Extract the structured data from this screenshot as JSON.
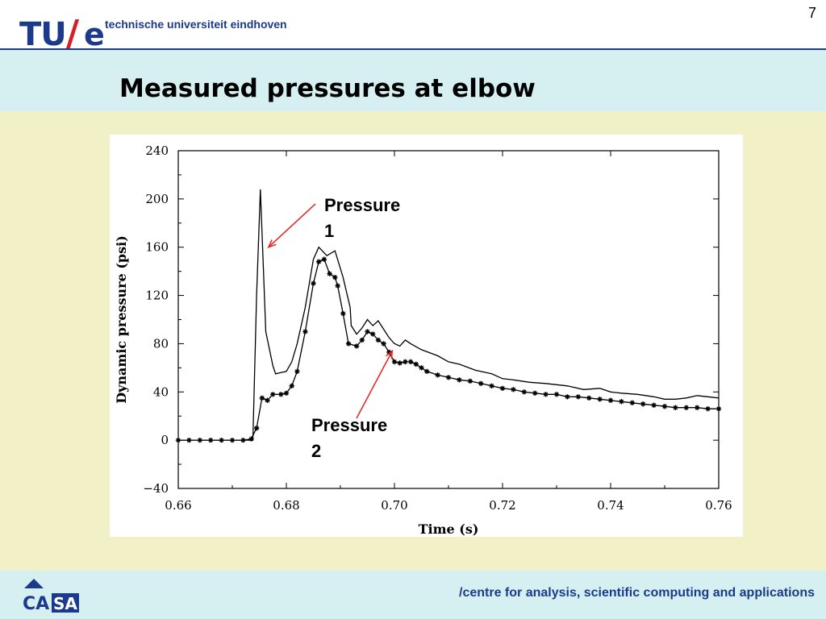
{
  "header": {
    "logo_text": "TU/e",
    "university": "technische universiteit eindhoven",
    "page_number": "7"
  },
  "slide": {
    "title": "Measured pressures at elbow"
  },
  "footer": {
    "logo_text": "CASA",
    "text": "/centre for analysis, scientific computing and applications"
  },
  "chart_data": {
    "type": "line",
    "xlabel": "Time (s)",
    "ylabel": "Dynamic pressure (psi)",
    "xlim": [
      0.66,
      0.76
    ],
    "ylim": [
      -40,
      240
    ],
    "x_ticks": [
      "0.66",
      "0.68",
      "0.70",
      "0.72",
      "0.74",
      "0.76"
    ],
    "y_ticks": [
      "−40",
      "0",
      "40",
      "80",
      "120",
      "160",
      "200",
      "240"
    ],
    "grid": false,
    "series": [
      {
        "name": "Pressure 1",
        "marker": "none",
        "points": [
          [
            0.66,
            0
          ],
          [
            0.673,
            0
          ],
          [
            0.6738,
            0
          ],
          [
            0.6745,
            120
          ],
          [
            0.6752,
            208
          ],
          [
            0.6762,
            90
          ],
          [
            0.6775,
            62
          ],
          [
            0.678,
            55
          ],
          [
            0.679,
            56
          ],
          [
            0.68,
            57
          ],
          [
            0.681,
            65
          ],
          [
            0.682,
            80
          ],
          [
            0.6835,
            110
          ],
          [
            0.685,
            150
          ],
          [
            0.686,
            160
          ],
          [
            0.6875,
            153
          ],
          [
            0.689,
            157
          ],
          [
            0.6905,
            135
          ],
          [
            0.6918,
            110
          ],
          [
            0.692,
            95
          ],
          [
            0.693,
            88
          ],
          [
            0.694,
            93
          ],
          [
            0.695,
            100
          ],
          [
            0.696,
            95
          ],
          [
            0.697,
            99
          ],
          [
            0.698,
            92
          ],
          [
            0.699,
            85
          ],
          [
            0.7,
            80
          ],
          [
            0.701,
            78
          ],
          [
            0.702,
            83
          ],
          [
            0.703,
            80
          ],
          [
            0.705,
            75
          ],
          [
            0.708,
            70
          ],
          [
            0.71,
            65
          ],
          [
            0.712,
            63
          ],
          [
            0.715,
            58
          ],
          [
            0.718,
            55
          ],
          [
            0.72,
            51
          ],
          [
            0.722,
            50
          ],
          [
            0.725,
            48
          ],
          [
            0.728,
            47
          ],
          [
            0.73,
            46
          ],
          [
            0.732,
            45
          ],
          [
            0.735,
            42
          ],
          [
            0.738,
            43
          ],
          [
            0.74,
            40
          ],
          [
            0.742,
            39
          ],
          [
            0.745,
            38
          ],
          [
            0.748,
            36
          ],
          [
            0.75,
            34
          ],
          [
            0.752,
            34
          ],
          [
            0.754,
            35
          ],
          [
            0.756,
            37
          ],
          [
            0.758,
            36
          ],
          [
            0.76,
            35
          ]
        ]
      },
      {
        "name": "Pressure 2",
        "marker": "star",
        "points": [
          [
            0.66,
            0
          ],
          [
            0.662,
            0
          ],
          [
            0.664,
            0
          ],
          [
            0.666,
            0
          ],
          [
            0.668,
            0
          ],
          [
            0.67,
            0
          ],
          [
            0.672,
            0
          ],
          [
            0.6735,
            1
          ],
          [
            0.6745,
            10
          ],
          [
            0.6755,
            35
          ],
          [
            0.6765,
            33
          ],
          [
            0.6775,
            38
          ],
          [
            0.679,
            38
          ],
          [
            0.68,
            39
          ],
          [
            0.681,
            45
          ],
          [
            0.682,
            57
          ],
          [
            0.6835,
            90
          ],
          [
            0.685,
            130
          ],
          [
            0.686,
            148
          ],
          [
            0.687,
            150
          ],
          [
            0.688,
            138
          ],
          [
            0.689,
            135
          ],
          [
            0.6895,
            128
          ],
          [
            0.6905,
            105
          ],
          [
            0.6915,
            80
          ],
          [
            0.693,
            78
          ],
          [
            0.694,
            83
          ],
          [
            0.695,
            90
          ],
          [
            0.696,
            88
          ],
          [
            0.697,
            83
          ],
          [
            0.698,
            80
          ],
          [
            0.699,
            73
          ],
          [
            0.7,
            65
          ],
          [
            0.701,
            64
          ],
          [
            0.702,
            65
          ],
          [
            0.703,
            65
          ],
          [
            0.704,
            63
          ],
          [
            0.705,
            60
          ],
          [
            0.706,
            57
          ],
          [
            0.708,
            54
          ],
          [
            0.71,
            52
          ],
          [
            0.712,
            50
          ],
          [
            0.714,
            49
          ],
          [
            0.716,
            47
          ],
          [
            0.718,
            45
          ],
          [
            0.72,
            43
          ],
          [
            0.722,
            42
          ],
          [
            0.724,
            40
          ],
          [
            0.726,
            39
          ],
          [
            0.728,
            38
          ],
          [
            0.73,
            38
          ],
          [
            0.732,
            36
          ],
          [
            0.734,
            36
          ],
          [
            0.736,
            35
          ],
          [
            0.738,
            34
          ],
          [
            0.74,
            33
          ],
          [
            0.742,
            32
          ],
          [
            0.744,
            31
          ],
          [
            0.746,
            30
          ],
          [
            0.748,
            29
          ],
          [
            0.75,
            28
          ],
          [
            0.752,
            27
          ],
          [
            0.754,
            27
          ],
          [
            0.756,
            27
          ],
          [
            0.758,
            26
          ],
          [
            0.76,
            26
          ]
        ]
      }
    ],
    "annotations": [
      {
        "label_lines": [
          "Pressure",
          "1"
        ],
        "series": "Pressure 1",
        "arrow_color": "#e8231e"
      },
      {
        "label_lines": [
          "Pressure",
          "2"
        ],
        "series": "Pressure 2",
        "arrow_color": "#e8231e"
      }
    ]
  }
}
